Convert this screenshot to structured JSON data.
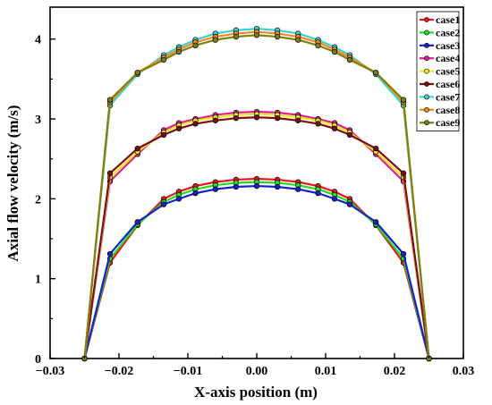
{
  "chart_data": {
    "type": "line",
    "xlabel": "X-axis position (m)",
    "ylabel": "Axial flow velocity (m/s)",
    "xlim": [
      -0.03,
      0.03
    ],
    "ylim": [
      0,
      4.4
    ],
    "xticks": [
      "-0.03",
      "-0.02",
      "-0.01",
      "0.00",
      "0.01",
      "0.02",
      "0.03"
    ],
    "yticks": [
      "0",
      "1",
      "2",
      "3",
      "4"
    ],
    "legend_position": "top-right",
    "grid": false,
    "x": [
      -0.025,
      -0.0213,
      -0.0173,
      -0.0135,
      -0.0113,
      -0.0089,
      -0.006,
      -0.003,
      0.0,
      0.003,
      0.006,
      0.0089,
      0.0113,
      0.0135,
      0.0173,
      0.0213,
      0.025
    ],
    "series": [
      {
        "name": "case1",
        "color": "#e8171a",
        "values": [
          0,
          1.2,
          1.67,
          2.0,
          2.09,
          2.16,
          2.21,
          2.24,
          2.25,
          2.24,
          2.21,
          2.16,
          2.09,
          2.0,
          1.67,
          1.2,
          0
        ]
      },
      {
        "name": "case2",
        "color": "#22dd22",
        "values": [
          0,
          1.25,
          1.68,
          1.96,
          2.05,
          2.12,
          2.17,
          2.2,
          2.21,
          2.2,
          2.17,
          2.12,
          2.05,
          1.96,
          1.68,
          1.25,
          0
        ]
      },
      {
        "name": "case3",
        "color": "#1222cc",
        "values": [
          0,
          1.31,
          1.71,
          1.93,
          2.0,
          2.07,
          2.12,
          2.15,
          2.16,
          2.15,
          2.12,
          2.07,
          2.0,
          1.93,
          1.71,
          1.31,
          0
        ]
      },
      {
        "name": "case4",
        "color": "#e0208c",
        "values": [
          0,
          2.22,
          2.56,
          2.86,
          2.95,
          3.0,
          3.05,
          3.08,
          3.09,
          3.08,
          3.05,
          3.0,
          2.95,
          2.86,
          2.56,
          2.22,
          0
        ]
      },
      {
        "name": "case5",
        "color": "#e8e81a",
        "values": [
          0,
          2.27,
          2.59,
          2.83,
          2.92,
          2.98,
          3.02,
          3.05,
          3.06,
          3.05,
          3.02,
          2.98,
          2.92,
          2.83,
          2.59,
          2.27,
          0
        ]
      },
      {
        "name": "case6",
        "color": "#7a0f0f",
        "values": [
          0,
          2.32,
          2.63,
          2.8,
          2.88,
          2.94,
          2.98,
          3.01,
          3.02,
          3.01,
          2.98,
          2.94,
          2.88,
          2.8,
          2.63,
          2.32,
          0
        ]
      },
      {
        "name": "case7",
        "color": "#3cd2d2",
        "values": [
          0,
          3.17,
          3.56,
          3.8,
          3.9,
          3.99,
          4.07,
          4.11,
          4.13,
          4.11,
          4.07,
          3.99,
          3.9,
          3.8,
          3.56,
          3.17,
          0
        ]
      },
      {
        "name": "case8",
        "color": "#f08a1c",
        "values": [
          0,
          3.21,
          3.58,
          3.77,
          3.87,
          3.96,
          4.03,
          4.07,
          4.09,
          4.07,
          4.03,
          3.96,
          3.87,
          3.77,
          3.58,
          3.21,
          0
        ]
      },
      {
        "name": "case9",
        "color": "#7f7f12",
        "values": [
          0,
          3.24,
          3.58,
          3.74,
          3.84,
          3.92,
          3.99,
          4.03,
          4.05,
          4.03,
          3.99,
          3.92,
          3.84,
          3.74,
          3.58,
          3.24,
          0
        ]
      }
    ]
  }
}
